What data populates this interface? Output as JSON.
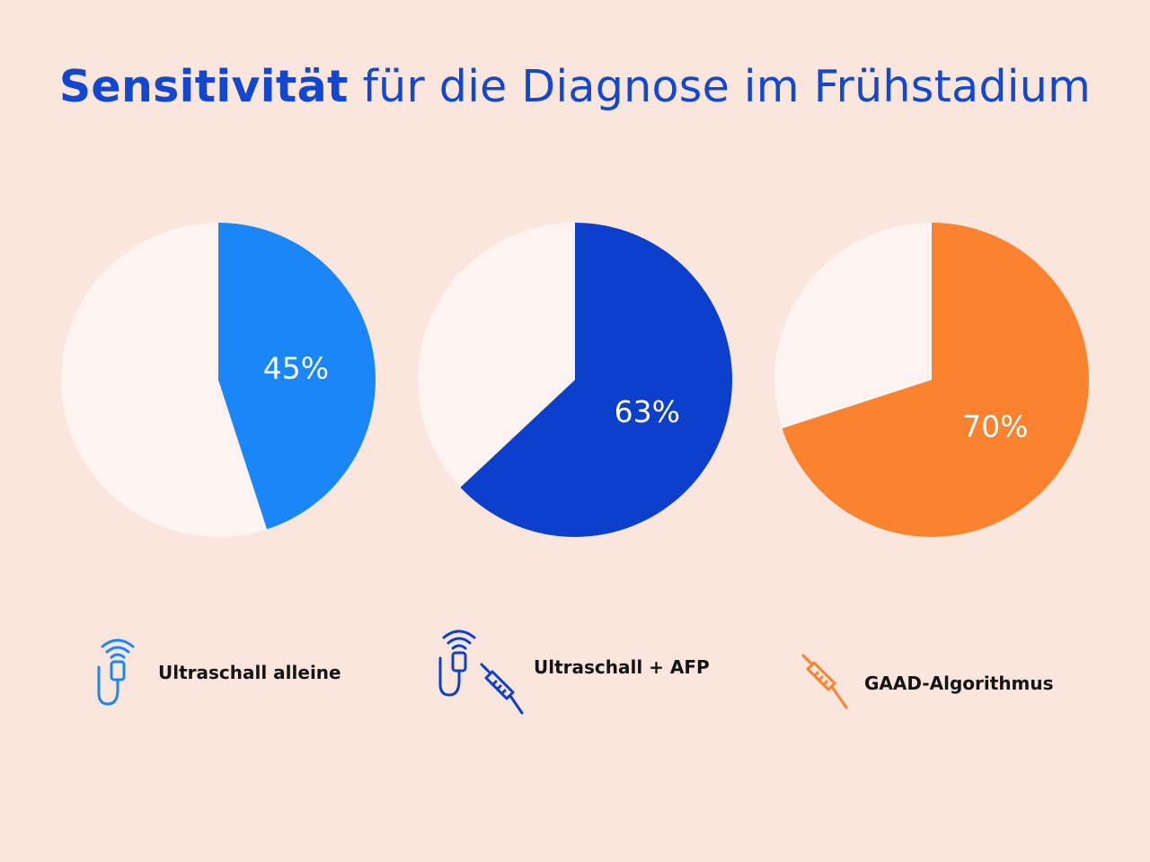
{
  "header": {
    "title_bold": "Sensitivität",
    "title_rest": "für die Diagnose im Frühstadium"
  },
  "colors": {
    "background": "#fbe6de",
    "pie_remainder": "#fdf3f1",
    "title": "#1347d0",
    "label_text": "#ffffff"
  },
  "chart_data": {
    "type": "pie",
    "title": "Sensitivität für die Diagnose im Frühstadium",
    "unit": "%",
    "series": [
      {
        "name": "Ultraschall alleine",
        "value": 45,
        "label": "45%",
        "color": "#1a86f7",
        "icon": "ultrasound-probe-icon"
      },
      {
        "name": "Ultraschall + AFP",
        "value": 63,
        "label": "63%",
        "color": "#0b3fcc",
        "icon": "ultrasound-probe-and-syringe-icon"
      },
      {
        "name": "GAAD-Algorithmus",
        "value": 70,
        "label": "70%",
        "color": "#fb822e",
        "icon": "syringe-icon"
      }
    ]
  },
  "legend": {
    "items": [
      {
        "label": "Ultraschall alleine"
      },
      {
        "label": "Ultraschall + AFP"
      },
      {
        "label": "GAAD-Algorithmus"
      }
    ]
  }
}
